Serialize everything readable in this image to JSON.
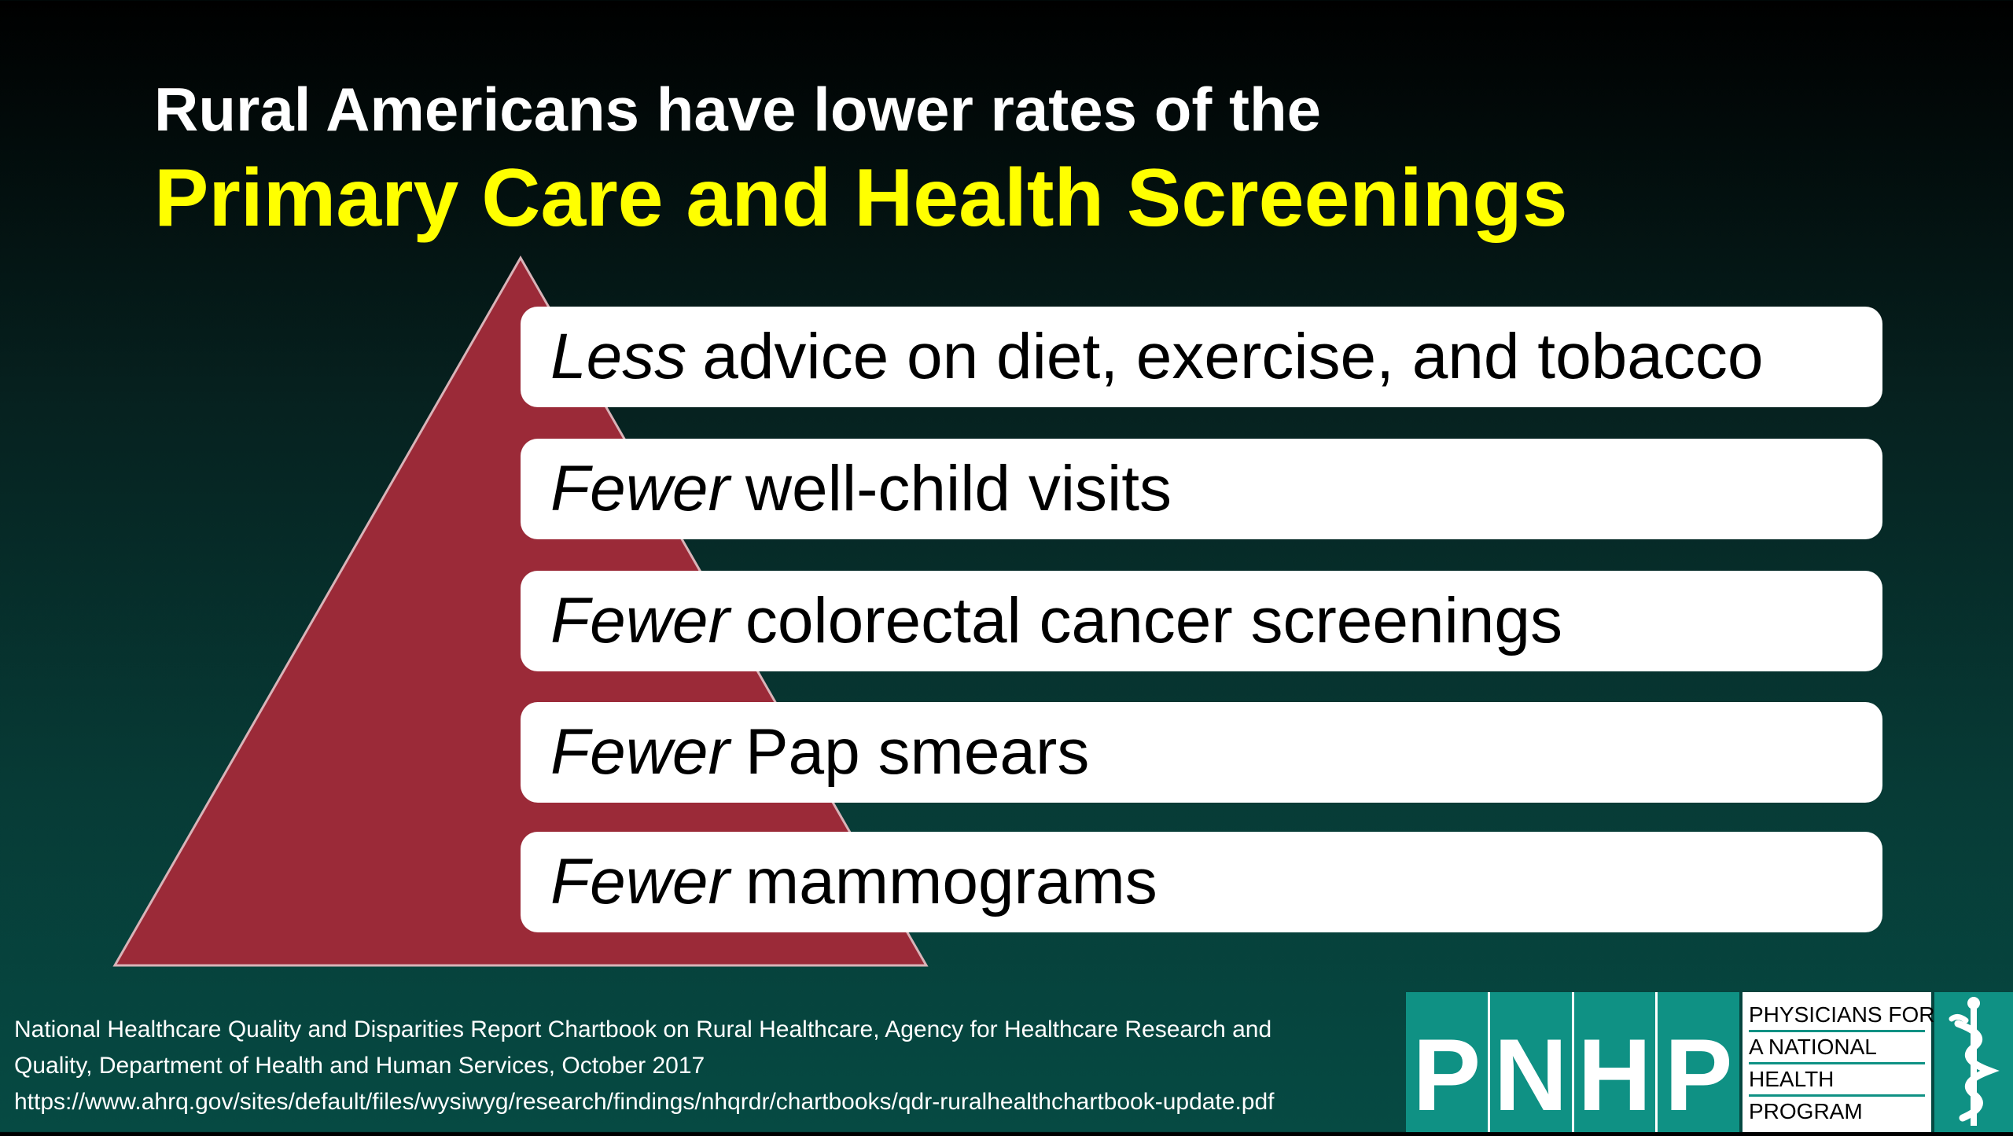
{
  "title": {
    "line1": "Rural Americans have lower rates of the",
    "line2": "Primary Care and Health Screenings"
  },
  "colors": {
    "pyramid": "#9b2a38",
    "title_highlight": "#ffff00",
    "logo_teal": "#0f9184"
  },
  "items": [
    {
      "emphasis": "Less",
      "text": "advice on diet, exercise, and tobacco"
    },
    {
      "emphasis": "Fewer",
      "text": "well-child visits"
    },
    {
      "emphasis": "Fewer",
      "text": "colorectal cancer screenings"
    },
    {
      "emphasis": "Fewer",
      "text": "Pap smears"
    },
    {
      "emphasis": "Fewer",
      "text": "mammograms"
    }
  ],
  "citation": {
    "line1": "National Healthcare Quality and Disparities Report Chartbook on Rural Healthcare, Agency for Healthcare Research and",
    "line2": "Quality, Department of Health and Human Services, October 2017",
    "line3": "https://www.ahrq.gov/sites/default/files/wysiwyg/research/findings/nhqrdr/chartbooks/qdr-ruralhealthchartbook-update.pdf"
  },
  "logo": {
    "letters": [
      "P",
      "N",
      "H",
      "P"
    ],
    "text_lines": [
      "PHYSICIANS FOR",
      "A NATIONAL",
      "HEALTH",
      "PROGRAM"
    ],
    "icon": "caduceus-icon"
  }
}
